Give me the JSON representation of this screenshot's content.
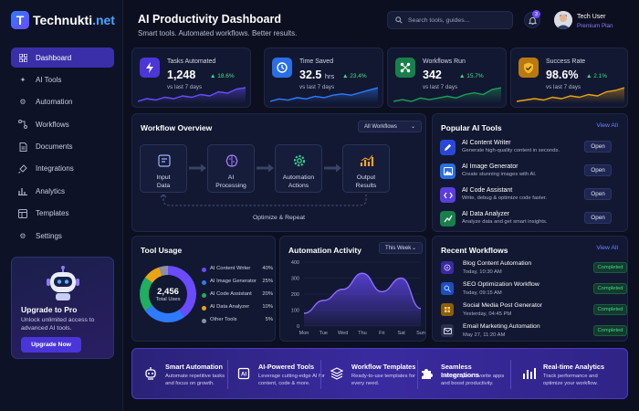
{
  "brand": {
    "name_main": "Technukti",
    "name_suffix": ".net",
    "mark": "T"
  },
  "sidebar": {
    "items": [
      {
        "label": "Dashboard",
        "icon": "grid-icon",
        "active": true
      },
      {
        "label": "AI Tools",
        "icon": "sparkle-icon",
        "active": false
      },
      {
        "label": "Automation",
        "icon": "gears-icon",
        "active": false
      },
      {
        "label": "Workflows",
        "icon": "workflow-icon",
        "active": false
      },
      {
        "label": "Documents",
        "icon": "document-icon",
        "active": false
      },
      {
        "label": "Integrations",
        "icon": "plug-icon",
        "active": false
      },
      {
        "label": "Analytics",
        "icon": "bar-chart-icon",
        "active": false
      },
      {
        "label": "Templates",
        "icon": "template-icon",
        "active": false
      },
      {
        "label": "Settings",
        "icon": "gear-icon",
        "active": false
      }
    ],
    "upgrade": {
      "title": "Upgrade to Pro",
      "desc": "Unlock unlimited access to advanced AI tools.",
      "button": "Upgrade Now"
    }
  },
  "header": {
    "title": "AI Productivity Dashboard",
    "subtitle": "Smart tools. Automated workflows. Better results.",
    "search_placeholder": "Search tools, guides...",
    "notifications": "3",
    "user_name": "Tech User",
    "user_plan": "Premium Plan"
  },
  "stats": [
    {
      "label": "Tasks Automated",
      "value": "1,248",
      "unit": "",
      "change": "▲ 18.6%",
      "note": "vs last 7 days",
      "icon": "lightning-icon",
      "color": "#6a4bff",
      "spark": [
        4,
        6,
        5,
        7,
        6,
        8,
        7,
        9,
        8,
        11,
        10,
        13,
        14
      ]
    },
    {
      "label": "Time Saved",
      "value": "32.5",
      "unit": "hrs",
      "change": "▲ 23.4%",
      "note": "vs last 7 days",
      "icon": "clock-icon",
      "color": "#2f7bff",
      "spark": [
        3,
        5,
        4,
        6,
        5,
        7,
        6,
        8,
        9,
        8,
        10,
        12,
        14
      ]
    },
    {
      "label": "Workflows Run",
      "value": "342",
      "unit": "",
      "change": "▲ 15.7%",
      "note": "vs last 7 days",
      "icon": "network-icon",
      "color": "#1f9e5a",
      "spark": [
        5,
        6,
        5,
        7,
        6,
        7,
        8,
        7,
        9,
        10,
        9,
        12,
        13
      ]
    },
    {
      "label": "Success Rate",
      "value": "98.6%",
      "unit": "",
      "change": "▲ 2.1%",
      "note": "vs last 7 days",
      "icon": "shield-check-icon",
      "color": "#e8a317",
      "spark": [
        4,
        5,
        6,
        5,
        7,
        6,
        8,
        7,
        9,
        8,
        11,
        12,
        14
      ]
    }
  ],
  "workflow_overview": {
    "title": "Workflow Overview",
    "select": "All Workflows",
    "steps": [
      {
        "label1": "Input",
        "label2": "Data",
        "icon": "input-icon"
      },
      {
        "label1": "AI",
        "label2": "Processing",
        "icon": "brain-icon"
      },
      {
        "label1": "Automation",
        "label2": "Actions",
        "icon": "gear-icon"
      },
      {
        "label1": "Output",
        "label2": "Results",
        "icon": "results-chart-icon"
      }
    ],
    "loop_label": "Optimize & Repeat"
  },
  "popular_tools": {
    "title": "Popular AI Tools",
    "view_all": "View All",
    "items": [
      {
        "name": "AI Content Writer",
        "desc": "Generate high-quality content in seconds.",
        "button": "Open",
        "icon": "pen-icon",
        "color": "#3b5bff"
      },
      {
        "name": "AI Image Generator",
        "desc": "Create stunning images with AI.",
        "button": "Open",
        "icon": "image-icon",
        "color": "#2f7bff"
      },
      {
        "name": "AI Code Assistant",
        "desc": "Write, debug & optimize code faster.",
        "button": "Open",
        "icon": "code-icon",
        "color": "#6a4bff"
      },
      {
        "name": "AI Data Analyzer",
        "desc": "Analyze data and get smart insights.",
        "button": "Open",
        "icon": "chart-icon",
        "color": "#1f9e5a"
      }
    ]
  },
  "tool_usage": {
    "title": "Tool Usage",
    "center_value": "2,456",
    "center_label": "Total Uses",
    "items": [
      {
        "name": "AI Content Writer",
        "pct": "40%",
        "value": 40,
        "color": "#6a4bff"
      },
      {
        "name": "AI Image Generator",
        "pct": "25%",
        "value": 25,
        "color": "#2f7bff"
      },
      {
        "name": "AI Code Assistant",
        "pct": "20%",
        "value": 20,
        "color": "#1fae62"
      },
      {
        "name": "AI Data Analyzer",
        "pct": "10%",
        "value": 10,
        "color": "#e8a317"
      },
      {
        "name": "Other Tools",
        "pct": "5%",
        "value": 5,
        "color": "#8a90a8"
      }
    ]
  },
  "chart_data": {
    "type": "area",
    "title": "Automation Activity",
    "categories": [
      "Mon",
      "Tue",
      "Wed",
      "Thu",
      "Fri",
      "Sat",
      "Sun"
    ],
    "values": [
      80,
      160,
      230,
      330,
      215,
      300,
      110
    ],
    "ylim": [
      0,
      400
    ],
    "yticks": [
      "400",
      "300",
      "200",
      "100",
      "0"
    ],
    "range": "This Week"
  },
  "recent_workflows": {
    "title": "Recent Workflows",
    "view_all": "View All",
    "items": [
      {
        "name": "Blog Content Automation",
        "time": "Today, 10:30 AM",
        "status": "Completed",
        "icon": "blog-icon",
        "color": "#6a4bff"
      },
      {
        "name": "SEO Optimization Workflow",
        "time": "Today, 09:15 AM",
        "status": "Completed",
        "icon": "seo-icon",
        "color": "#2f7bff"
      },
      {
        "name": "Social Media Post Generator",
        "time": "Yesterday, 04:45 PM",
        "status": "Completed",
        "icon": "social-icon",
        "color": "#e8a317"
      },
      {
        "name": "Email Marketing Automation",
        "time": "May 27, 11:20 AM",
        "status": "Completed",
        "icon": "mail-icon",
        "color": "#8a90a8"
      }
    ]
  },
  "features": [
    {
      "title": "Smart Automation",
      "desc": "Automate repetitive tasks and focus on growth.",
      "icon": "robot-icon"
    },
    {
      "title": "AI-Powered Tools",
      "desc": "Leverage cutting-edge AI for content, code & more.",
      "icon": "ai-chip-icon"
    },
    {
      "title": "Workflow Templates",
      "desc": "Ready-to-use templates for every need.",
      "icon": "layers-icon"
    },
    {
      "title": "Seamless Integrations",
      "desc": "Connect your favorite apps and boost productivity.",
      "icon": "puzzle-icon"
    },
    {
      "title": "Real-time Analytics",
      "desc": "Track performance and optimize your workflow.",
      "icon": "analytics-icon"
    }
  ]
}
